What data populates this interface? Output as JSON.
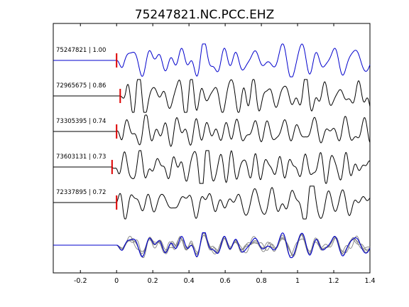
{
  "chart_data": {
    "type": "line",
    "title": "75247821.NC.PCC.EHZ",
    "xlabel": "",
    "ylabel": "",
    "xlim": [
      -0.35,
      1.4
    ],
    "xticks": [
      -0.2,
      0,
      0.2,
      0.4,
      0.6,
      0.8,
      1,
      1.2,
      1.4
    ],
    "xtick_labels": [
      "-0.2",
      "0",
      "0.2",
      "0.4",
      "0.6",
      "0.8",
      "1",
      "1.2",
      "1.4"
    ],
    "grid": false,
    "legend": "none",
    "series": [
      {
        "label": "75247821 | 1.00",
        "color": "#0000cc",
        "pick_time": 0.0,
        "onset": 0.0
      },
      {
        "label": "72965675 | 0.86",
        "color": "#000000",
        "pick_time": 0.02,
        "onset": 0.02
      },
      {
        "label": "73305395 | 0.74",
        "color": "#000000",
        "pick_time": 0.0,
        "onset": 0.0
      },
      {
        "label": "73603131 | 0.73",
        "color": "#000000",
        "pick_time": -0.025,
        "onset": -0.025
      },
      {
        "label": "72337895 | 0.72",
        "color": "#000000",
        "pick_time": 0.0,
        "onset": 0.0
      }
    ],
    "stack": {
      "reference_color": "#0000cc",
      "overlay_color": "#808080"
    },
    "pick_marker_color": "#dd0000"
  }
}
